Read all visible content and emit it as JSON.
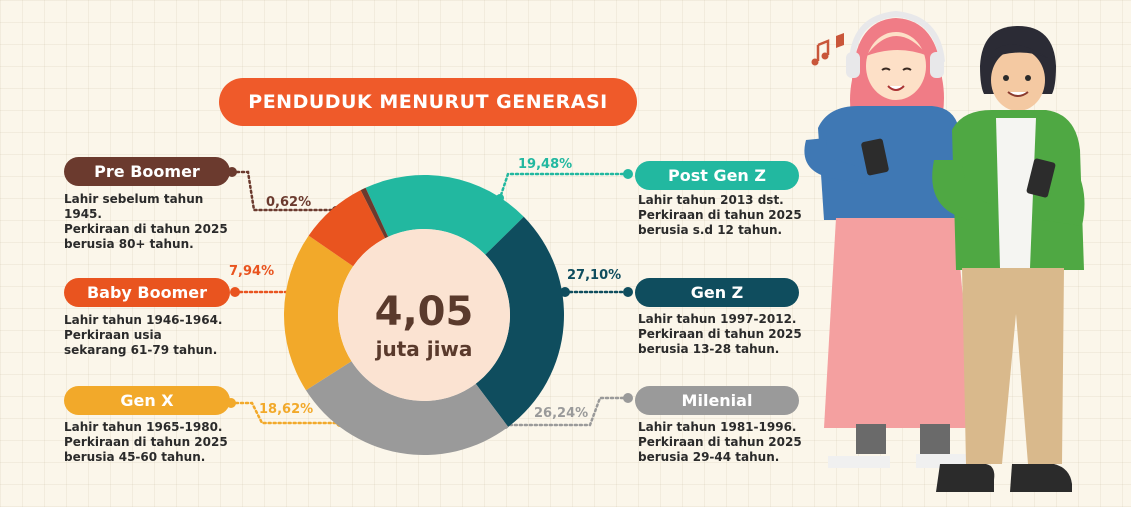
{
  "title": "PENDUDUK MENURUT GENERASI",
  "center": {
    "value": "4,05",
    "unit": "juta jiwa"
  },
  "colors": {
    "pre_boomer": "#6b3a2e",
    "baby_boomer": "#e9541f",
    "gen_x": "#f2a92a",
    "milenial": "#9a9a9a",
    "gen_z": "#0f4d5e",
    "post_gen_z": "#22b8a0",
    "title_bg": "#ef5a2a",
    "center_bg": "#fbe3d2",
    "center_text": "#5a3a2c"
  },
  "generations": [
    {
      "key": "pre_boomer",
      "label": "Pre Boomer",
      "percent_label": "0,62%",
      "lines": "Lahir sebelum tahun\n1945.\nPerkiraan di tahun 2025\nberusia 80+ tahun."
    },
    {
      "key": "baby_boomer",
      "label": "Baby Boomer",
      "percent_label": "7,94%",
      "lines": "Lahir tahun 1946-1964.\nPerkiraan usia\nsekarang 61-79 tahun."
    },
    {
      "key": "gen_x",
      "label": "Gen X",
      "percent_label": "18,62%",
      "lines": "Lahir tahun 1965-1980.\nPerkiraan di tahun 2025\nberusia 45-60 tahun."
    },
    {
      "key": "post_gen_z",
      "label": "Post Gen Z",
      "percent_label": "19,48%",
      "lines": "Lahir tahun 2013 dst.\nPerkiraan di tahun 2025\nberusia s.d 12 tahun."
    },
    {
      "key": "gen_z",
      "label": "Gen Z",
      "percent_label": "27,10%",
      "lines": "Lahir tahun 1997-2012.\nPerkiraan di tahun 2025\nberusia 13-28 tahun."
    },
    {
      "key": "milenial",
      "label": "Milenial",
      "percent_label": "26,24%",
      "lines": "Lahir tahun 1981-1996.\nPerkiraan di tahun 2025\nberusia 29-44 tahun."
    }
  ],
  "chart_data": {
    "type": "pie",
    "categories": [
      "Post Gen Z",
      "Gen Z",
      "Milenial",
      "Gen X",
      "Baby Boomer",
      "Pre Boomer"
    ],
    "values": [
      19.48,
      27.1,
      26.24,
      18.62,
      7.94,
      0.62
    ],
    "title": "PENDUDUK MENURUT GENERASI"
  },
  "illustration": {
    "people": [
      "girl-with-headphones",
      "boy-with-phone"
    ]
  }
}
